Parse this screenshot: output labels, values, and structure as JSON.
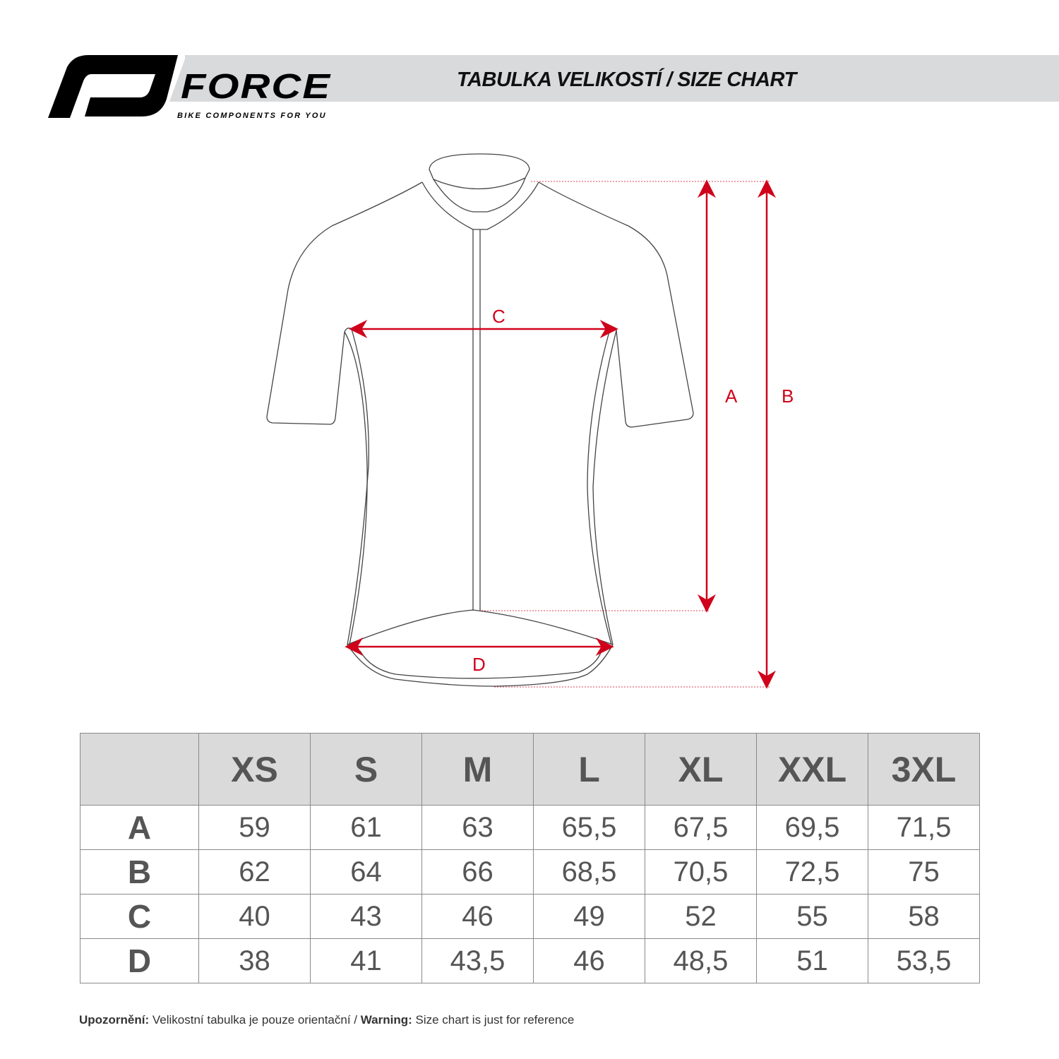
{
  "brand": {
    "name": "FORCE",
    "tagline": "BIKE COMPONENTS FOR YOU"
  },
  "title": "TABULKA VELIKOSTÍ / SIZE CHART",
  "diagram": {
    "labels": {
      "a": "A",
      "b": "B",
      "c": "C",
      "d": "D"
    },
    "arrow_color": "#d0021b"
  },
  "table": {
    "columns": [
      "XS",
      "S",
      "M",
      "L",
      "XL",
      "XXL",
      "3XL"
    ],
    "rows": [
      {
        "label": "A",
        "values": [
          "59",
          "61",
          "63",
          "65,5",
          "67,5",
          "69,5",
          "71,5"
        ]
      },
      {
        "label": "B",
        "values": [
          "62",
          "64",
          "66",
          "68,5",
          "70,5",
          "72,5",
          "75"
        ]
      },
      {
        "label": "C",
        "values": [
          "40",
          "43",
          "46",
          "49",
          "52",
          "55",
          "58"
        ]
      },
      {
        "label": "D",
        "values": [
          "38",
          "41",
          "43,5",
          "46",
          "48,5",
          "51",
          "53,5"
        ]
      }
    ]
  },
  "note": {
    "cz_label": "Upozornění:",
    "cz_text": " Velikostní tabulka je pouze orientační / ",
    "en_label": "Warning:",
    "en_text": " Size chart is just for reference"
  }
}
